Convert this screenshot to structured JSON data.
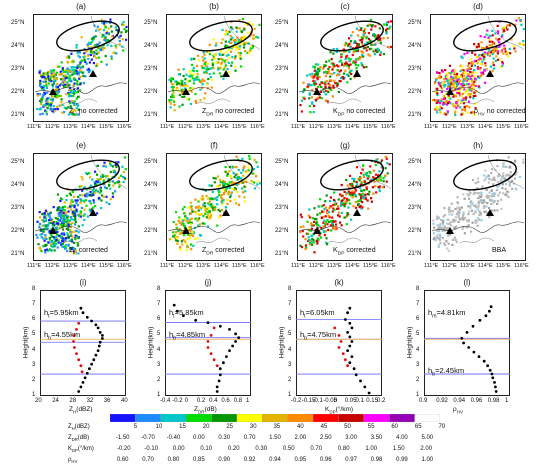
{
  "map_panels": [
    {
      "id": "a",
      "label": "(a)",
      "caption": "Z_H no corrected",
      "var": "Z",
      "sub": "H"
    },
    {
      "id": "b",
      "label": "(b)",
      "caption": "Z_DR no corrected",
      "var": "Z",
      "sub": "DR"
    },
    {
      "id": "c",
      "label": "(c)",
      "caption": "K_DP no corrected",
      "var": "K",
      "sub": "DP"
    },
    {
      "id": "d",
      "label": "(d)",
      "caption": "ρ_HV no corrected",
      "var": "ρ",
      "sub": "HV"
    },
    {
      "id": "e",
      "label": "(e)",
      "caption": "Z_H corrected",
      "var": "Z",
      "sub": "H"
    },
    {
      "id": "f",
      "label": "(f)",
      "caption": "Z_DR corrected",
      "var": "Z",
      "sub": "DR"
    },
    {
      "id": "g",
      "label": "(g)",
      "caption": "K_DP corrected",
      "var": "K",
      "sub": "DP"
    },
    {
      "id": "h",
      "label": "(h)",
      "caption": "BBA",
      "var": "BBA",
      "sub": ""
    }
  ],
  "map_axes": {
    "lat_ticks": [
      "25°N",
      "24°N",
      "23°N",
      "22°N",
      "21°N"
    ],
    "lon_ticks": [
      "111°E",
      "112°E",
      "113°E",
      "114°E",
      "115°E",
      "116°E"
    ]
  },
  "profile_panels": [
    {
      "id": "i",
      "label": "(i)",
      "xlabel": "Z_H(dBZ)",
      "xticks": [
        "20",
        "24",
        "28",
        "32",
        "36",
        "40"
      ],
      "xlim": [
        20,
        40
      ],
      "annotations": [
        "h_t=5.95km",
        "h_b=4.55km"
      ],
      "ht": 5.95,
      "hb": 4.55
    },
    {
      "id": "j",
      "label": "(j)",
      "xlabel": "Z_DR(dB)",
      "xticks": [
        "-0.4",
        "-0.2",
        "0",
        "0.2",
        "0.4",
        "0.6",
        "0.8",
        "1"
      ],
      "xlim": [
        -0.4,
        1.0
      ],
      "annotations": [
        "h_t=5.85km",
        "h_b=4.85km"
      ],
      "ht": 5.85,
      "hb": 4.85
    },
    {
      "id": "k",
      "label": "(k)",
      "xlabel": "K_DP(°/km)",
      "xticks": [
        "-0.2",
        "-0.15",
        "-0.1",
        "-0.05",
        "0",
        "0.05",
        "0.1",
        "0.15",
        "0.2"
      ],
      "xlim": [
        -0.2,
        0.2
      ],
      "annotations": [
        "h_t=6.05km",
        "h_b=4.75km"
      ],
      "ht": 6.05,
      "hb": 4.75
    },
    {
      "id": "l",
      "label": "(l)",
      "xlabel": "ρ_HV",
      "xticks": [
        "0.9",
        "0.92",
        "0.94",
        "0.96",
        "0.98",
        "1"
      ],
      "xlim": [
        0.9,
        1.0
      ],
      "annotations": [
        "h_m=4.81km",
        "h_b=2.45km"
      ],
      "ht": 4.81,
      "hb": 2.45
    }
  ],
  "profile_axes": {
    "ylabel": "Height(km)",
    "yticks": [
      "1",
      "2",
      "3",
      "4",
      "5",
      "6",
      "7",
      "8"
    ],
    "ylim": [
      1,
      8
    ]
  },
  "colorbar": {
    "colors": [
      "#1414ff",
      "#1e8cff",
      "#00c8c8",
      "#00dc00",
      "#009600",
      "#ffff00",
      "#e6b400",
      "#ff8c00",
      "#ff0000",
      "#c80000",
      "#ff00ff",
      "#9600b4",
      "#ffffff"
    ],
    "rows": [
      {
        "label": "Z_H(dBZ)",
        "values": [
          "5",
          "10",
          "15",
          "20",
          "25",
          "30",
          "35",
          "40",
          "45",
          "50",
          "55",
          "60",
          "65",
          "70"
        ]
      },
      {
        "label": "Z_DR(dB)",
        "values": [
          "-1.50",
          "-0.70",
          "-0.40",
          "0.00",
          "0.30",
          "0.70",
          "1.50",
          "2.00",
          "2.50",
          "3.00",
          "3.50",
          "4.00",
          "5.00"
        ]
      },
      {
        "label": "K_DP(°/km)",
        "values": [
          "-0.20",
          "-0.10",
          "0.00",
          "0.10",
          "0.20",
          "0.30",
          "0.50",
          "0.70",
          "0.80",
          "1.00",
          "1.50",
          "2.00"
        ]
      },
      {
        "label": "ρ_HV",
        "values": [
          "0.60",
          "0.70",
          "0.80",
          "0.85",
          "0.90",
          "0.92",
          "0.94",
          "0.95",
          "0.96",
          "0.97",
          "0.98",
          "0.99",
          "1.00"
        ]
      }
    ]
  },
  "chart_data": [
    {
      "type": "scatter",
      "panel": "i",
      "xlabel": "Z_H(dBZ)",
      "ylabel": "Height(km)",
      "xlim": [
        20,
        40
      ],
      "ylim": [
        1,
        8
      ],
      "series": [
        {
          "values": [
            [
              29.5,
              6.8
            ],
            [
              30,
              6.5
            ],
            [
              31,
              6.2
            ],
            [
              32,
              5.95
            ],
            [
              33,
              5.7
            ],
            [
              33.5,
              5.5
            ],
            [
              34,
              5.2
            ],
            [
              34.5,
              5.0
            ],
            [
              34.5,
              4.8
            ],
            [
              34,
              4.55
            ],
            [
              33.8,
              4.3
            ],
            [
              33.5,
              4.0
            ],
            [
              33,
              3.7
            ],
            [
              32.5,
              3.4
            ],
            [
              32,
              3.1
            ],
            [
              31.5,
              2.8
            ],
            [
              31,
              2.5
            ],
            [
              30.5,
              2.2
            ],
            [
              30,
              1.9
            ],
            [
              29.5,
              1.6
            ],
            [
              29,
              1.3
            ]
          ]
        },
        {
          "values": [
            [
              29,
              5.8
            ],
            [
              28.5,
              5.4
            ],
            [
              28,
              5.0
            ],
            [
              27.8,
              4.6
            ],
            [
              28,
              4.2
            ],
            [
              28.5,
              3.8
            ],
            [
              29,
              3.4
            ],
            [
              29.5,
              3.0
            ],
            [
              29.8,
              2.6
            ]
          ]
        }
      ]
    },
    {
      "type": "scatter",
      "panel": "j",
      "xlabel": "Z_DR(dB)",
      "ylabel": "Height(km)",
      "xlim": [
        -0.4,
        1.0
      ],
      "ylim": [
        1,
        8
      ],
      "series": [
        {
          "values": [
            [
              -0.25,
              7.0
            ],
            [
              -0.2,
              6.6
            ],
            [
              -0.1,
              6.3
            ],
            [
              0.1,
              6.0
            ],
            [
              0.3,
              5.85
            ],
            [
              0.5,
              5.6
            ],
            [
              0.65,
              5.4
            ],
            [
              0.75,
              5.1
            ],
            [
              0.8,
              4.85
            ],
            [
              0.75,
              4.6
            ],
            [
              0.7,
              4.3
            ],
            [
              0.65,
              4.0
            ],
            [
              0.6,
              3.6
            ],
            [
              0.55,
              3.2
            ],
            [
              0.5,
              2.8
            ],
            [
              0.5,
              2.4
            ],
            [
              0.48,
              2.0
            ],
            [
              0.45,
              1.6
            ],
            [
              0.45,
              1.3
            ]
          ]
        },
        {
          "values": [
            [
              0.4,
              5.5
            ],
            [
              0.35,
              5.0
            ],
            [
              0.3,
              4.6
            ],
            [
              0.3,
              4.2
            ],
            [
              0.35,
              3.8
            ],
            [
              0.4,
              3.4
            ],
            [
              0.45,
              3.0
            ]
          ]
        }
      ]
    },
    {
      "type": "scatter",
      "panel": "k",
      "xlabel": "K_DP(°/km)",
      "ylabel": "Height(km)",
      "xlim": [
        -0.2,
        0.2
      ],
      "ylim": [
        1,
        8
      ],
      "series": [
        {
          "values": [
            [
              0.05,
              6.8
            ],
            [
              0.04,
              6.5
            ],
            [
              0.03,
              6.05
            ],
            [
              0.05,
              5.8
            ],
            [
              0.06,
              5.5
            ],
            [
              0.04,
              5.2
            ],
            [
              0.05,
              4.9
            ],
            [
              0.06,
              4.6
            ],
            [
              0.05,
              4.3
            ],
            [
              0.04,
              4.0
            ],
            [
              0.06,
              3.6
            ],
            [
              0.05,
              3.2
            ],
            [
              0.07,
              2.8
            ],
            [
              0.08,
              2.4
            ],
            [
              0.1,
              2.0
            ],
            [
              0.12,
              1.6
            ],
            [
              0.14,
              1.2
            ]
          ]
        },
        {
          "values": [
            [
              -0.02,
              5.5
            ],
            [
              0,
              5.0
            ],
            [
              0.01,
              4.6
            ],
            [
              0.0,
              4.2
            ],
            [
              0.02,
              3.8
            ],
            [
              0.03,
              3.4
            ],
            [
              0.04,
              3.0
            ]
          ]
        }
      ]
    },
    {
      "type": "scatter",
      "panel": "l",
      "xlabel": "ρ_HV",
      "ylabel": "Height(km)",
      "xlim": [
        0.9,
        1.0
      ],
      "ylim": [
        1,
        8
      ],
      "series": [
        {
          "values": [
            [
              0.978,
              6.9
            ],
            [
              0.976,
              6.6
            ],
            [
              0.972,
              6.3
            ],
            [
              0.965,
              6.0
            ],
            [
              0.957,
              5.6
            ],
            [
              0.95,
              5.2
            ],
            [
              0.944,
              4.81
            ],
            [
              0.946,
              4.5
            ],
            [
              0.952,
              4.2
            ],
            [
              0.958,
              3.9
            ],
            [
              0.964,
              3.6
            ],
            [
              0.97,
              3.3
            ],
            [
              0.974,
              3.0
            ],
            [
              0.977,
              2.7
            ],
            [
              0.979,
              2.45
            ],
            [
              0.98,
              2.2
            ],
            [
              0.982,
              1.9
            ],
            [
              0.983,
              1.6
            ],
            [
              0.984,
              1.3
            ]
          ]
        }
      ]
    }
  ]
}
